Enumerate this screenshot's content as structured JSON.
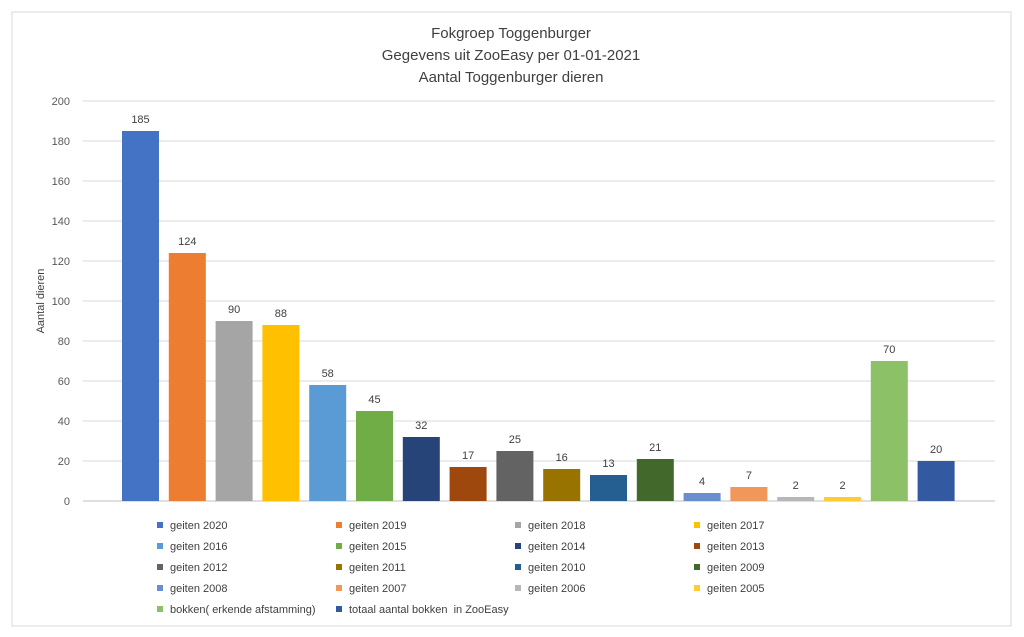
{
  "chart_data": {
    "type": "bar",
    "title": [
      "Fokgroep Toggenburger",
      "Gegevens uit ZooEasy per 01-01-2021",
      "Aantal Toggenburger dieren"
    ],
    "ylabel": "Aantal dieren",
    "ylim": [
      0,
      200
    ],
    "yticks": [
      0,
      20,
      40,
      60,
      80,
      100,
      120,
      140,
      160,
      180,
      200
    ],
    "grid": true,
    "legend": "bottom",
    "data_labels": true,
    "series": [
      {
        "name": "geiten 2020",
        "values": [
          185
        ],
        "color": "#4472C4"
      },
      {
        "name": "geiten 2019",
        "values": [
          124
        ],
        "color": "#ED7D31"
      },
      {
        "name": "geiten 2018",
        "values": [
          90
        ],
        "color": "#A5A5A5"
      },
      {
        "name": "geiten 2017",
        "values": [
          88
        ],
        "color": "#FFC000"
      },
      {
        "name": "geiten 2016",
        "values": [
          58
        ],
        "color": "#5B9BD5"
      },
      {
        "name": "geiten 2015",
        "values": [
          45
        ],
        "color": "#70AD47"
      },
      {
        "name": "geiten 2014",
        "values": [
          32
        ],
        "color": "#264478"
      },
      {
        "name": "geiten 2013",
        "values": [
          17
        ],
        "color": "#9E480E"
      },
      {
        "name": "geiten 2012",
        "values": [
          25
        ],
        "color": "#636363"
      },
      {
        "name": "geiten 2011",
        "values": [
          16
        ],
        "color": "#997300"
      },
      {
        "name": "geiten 2010",
        "values": [
          13
        ],
        "color": "#255E91"
      },
      {
        "name": "geiten 2009",
        "values": [
          21
        ],
        "color": "#43682B"
      },
      {
        "name": "geiten 2008",
        "values": [
          4
        ],
        "color": "#698ED0"
      },
      {
        "name": "geiten 2007",
        "values": [
          7
        ],
        "color": "#F1975A"
      },
      {
        "name": "geiten 2006",
        "values": [
          2
        ],
        "color": "#B7B7B7"
      },
      {
        "name": "geiten 2005",
        "values": [
          2
        ],
        "color": "#FFCD33"
      },
      {
        "name": "bokken( erkende afstamming)",
        "values": [
          70
        ],
        "color": "#8CC168"
      },
      {
        "name": "totaal aantal bokken  in ZooEasy",
        "values": [
          20
        ],
        "color": "#335AA1"
      }
    ]
  }
}
